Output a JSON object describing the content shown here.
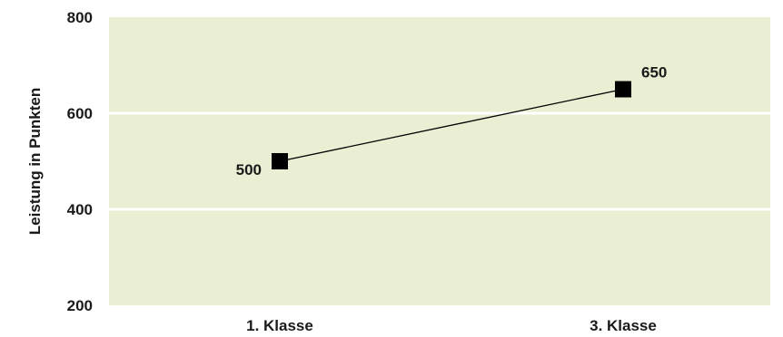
{
  "chart_data": {
    "type": "line",
    "title": "",
    "xlabel": "",
    "ylabel": "Leistung in Punkten",
    "categories": [
      "1. Klasse",
      "3. Klasse"
    ],
    "series": [
      {
        "values": [
          500,
          650
        ],
        "data_labels": [
          "500",
          "650"
        ]
      }
    ],
    "ylim": [
      200,
      800
    ],
    "yticks": [
      200,
      400,
      600,
      800
    ],
    "ytick_labels": [
      "200",
      "400",
      "600",
      "800"
    ],
    "grid": true,
    "legend": "none",
    "colors": {
      "plot_background": "#eaeed2",
      "gridline": "#ffffff",
      "line": "#000000",
      "marker": "#000000",
      "text": "#1a1a1a"
    }
  }
}
